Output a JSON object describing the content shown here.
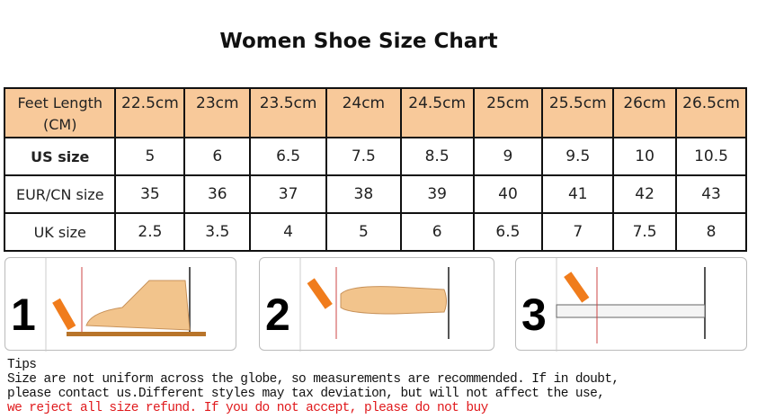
{
  "title": "Women Shoe Size Chart",
  "table": {
    "header": [
      "Feet Length (CM)",
      "22.5cm",
      "23cm",
      "23.5cm",
      "24cm",
      "24.5cm",
      "25cm",
      "25.5cm",
      "26cm",
      "26.5cm"
    ],
    "rows": [
      {
        "label": "US size",
        "values": [
          "5",
          "6",
          "6.5",
          "7.5",
          "8.5",
          "9",
          "9.5",
          "10",
          "10.5"
        ]
      },
      {
        "label": "EUR/CN size",
        "values": [
          "35",
          "36",
          "37",
          "38",
          "39",
          "40",
          "41",
          "42",
          "43"
        ]
      },
      {
        "label": "UK size",
        "values": [
          "2.5",
          "3.5",
          "4",
          "5",
          "6",
          "6.5",
          "7",
          "7.5",
          "8"
        ]
      }
    ]
  },
  "steps": [
    "1",
    "2",
    "3"
  ],
  "tips": {
    "heading": "Tips",
    "line1": "Size are not uniform across the globe, so measurements are recommended. If in doubt,",
    "line2": "please contact us.Different styles may tax deviation, but will not affect the use,",
    "line3": "we reject all size refund. If you do not accept, please do not buy"
  },
  "colors": {
    "header_bg": "#f8c99a",
    "warning": "#e0191c"
  }
}
